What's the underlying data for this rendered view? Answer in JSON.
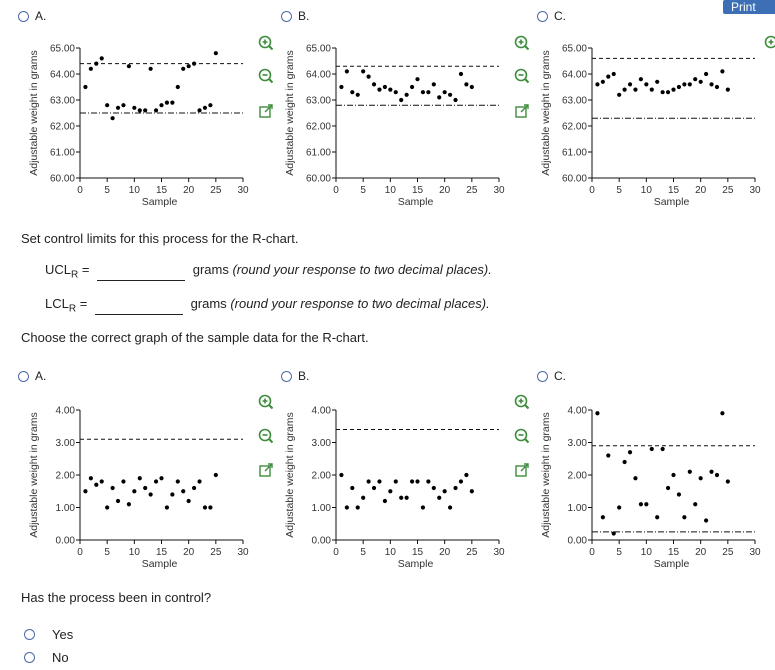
{
  "print_label": "Print",
  "xbar_options": [
    {
      "option_label": "A.",
      "chart_data": {
        "type": "scatter",
        "xlabel": "Sample",
        "ylabel": "Adjustable weight in grams",
        "xlim": [
          0,
          30
        ],
        "ylim": [
          60.0,
          65.0
        ],
        "xticks": [
          "0",
          "5",
          "10",
          "15",
          "20",
          "25",
          "30"
        ],
        "yticks": [
          "60.00",
          "61.00",
          "62.00",
          "63.00",
          "64.00",
          "65.00"
        ],
        "lines": [
          {
            "y": 64.4,
            "style": "dashed"
          },
          {
            "y": 62.5,
            "style": "dashdot"
          }
        ],
        "points": [
          [
            1,
            63.5
          ],
          [
            2,
            64.2
          ],
          [
            3,
            64.4
          ],
          [
            4,
            64.6
          ],
          [
            5,
            62.8
          ],
          [
            6,
            62.3
          ],
          [
            7,
            62.7
          ],
          [
            8,
            62.8
          ],
          [
            9,
            64.3
          ],
          [
            10,
            62.7
          ],
          [
            11,
            62.6
          ],
          [
            12,
            62.6
          ],
          [
            13,
            64.2
          ],
          [
            14,
            62.6
          ],
          [
            15,
            62.8
          ],
          [
            16,
            62.9
          ],
          [
            17,
            62.9
          ],
          [
            18,
            63.5
          ],
          [
            19,
            64.2
          ],
          [
            20,
            64.3
          ],
          [
            21,
            64.4
          ],
          [
            22,
            62.6
          ],
          [
            23,
            62.7
          ],
          [
            24,
            62.8
          ],
          [
            25,
            64.8
          ]
        ]
      }
    },
    {
      "option_label": "B.",
      "chart_data": {
        "type": "scatter",
        "xlabel": "Sample",
        "ylabel": "Adjustable weight in grams",
        "xlim": [
          0,
          30
        ],
        "ylim": [
          60.0,
          65.0
        ],
        "xticks": [
          "0",
          "5",
          "10",
          "15",
          "20",
          "25",
          "30"
        ],
        "yticks": [
          "60.00",
          "61.00",
          "62.00",
          "63.00",
          "64.00",
          "65.00"
        ],
        "lines": [
          {
            "y": 64.3,
            "style": "dashed"
          },
          {
            "y": 62.8,
            "style": "dashdot"
          }
        ],
        "points": [
          [
            1,
            63.5
          ],
          [
            2,
            64.1
          ],
          [
            3,
            63.3
          ],
          [
            4,
            63.2
          ],
          [
            5,
            64.1
          ],
          [
            6,
            63.9
          ],
          [
            7,
            63.6
          ],
          [
            8,
            63.4
          ],
          [
            9,
            63.5
          ],
          [
            10,
            63.4
          ],
          [
            11,
            63.3
          ],
          [
            12,
            63.0
          ],
          [
            13,
            63.2
          ],
          [
            14,
            63.5
          ],
          [
            15,
            63.8
          ],
          [
            16,
            63.3
          ],
          [
            17,
            63.3
          ],
          [
            18,
            63.6
          ],
          [
            19,
            63.1
          ],
          [
            20,
            63.3
          ],
          [
            21,
            63.2
          ],
          [
            22,
            63.0
          ],
          [
            23,
            64.0
          ],
          [
            24,
            63.6
          ],
          [
            25,
            63.5
          ]
        ]
      }
    },
    {
      "option_label": "C.",
      "chart_data": {
        "type": "scatter",
        "xlabel": "Sample",
        "ylabel": "Adjustable weight in grams",
        "xlim": [
          0,
          30
        ],
        "ylim": [
          60.0,
          65.0
        ],
        "xticks": [
          "0",
          "5",
          "10",
          "15",
          "20",
          "25",
          "30"
        ],
        "yticks": [
          "60.00",
          "61.00",
          "62.00",
          "63.00",
          "64.00",
          "65.00"
        ],
        "lines": [
          {
            "y": 64.6,
            "style": "dashed"
          },
          {
            "y": 62.3,
            "style": "dashdot"
          }
        ],
        "points": [
          [
            1,
            63.6
          ],
          [
            2,
            63.7
          ],
          [
            3,
            63.9
          ],
          [
            4,
            64.0
          ],
          [
            5,
            63.2
          ],
          [
            6,
            63.4
          ],
          [
            7,
            63.6
          ],
          [
            8,
            63.4
          ],
          [
            9,
            63.8
          ],
          [
            10,
            63.6
          ],
          [
            11,
            63.4
          ],
          [
            12,
            63.7
          ],
          [
            13,
            63.3
          ],
          [
            14,
            63.3
          ],
          [
            15,
            63.4
          ],
          [
            16,
            63.5
          ],
          [
            17,
            63.6
          ],
          [
            18,
            63.6
          ],
          [
            19,
            63.8
          ],
          [
            20,
            63.7
          ],
          [
            21,
            64.0
          ],
          [
            22,
            63.6
          ],
          [
            23,
            63.5
          ],
          [
            24,
            64.1
          ],
          [
            25,
            63.4
          ]
        ]
      }
    }
  ],
  "question": {
    "set_limits_text": "Set control limits for this process for the R-chart.",
    "ucl_label": "UCL",
    "lcl_label": "LCL",
    "subscript": "R",
    "equals": "=",
    "ucl_suffix_unit": "grams",
    "ucl_suffix_note": "(round your response to two decimal places).",
    "lcl_suffix_unit": "grams",
    "lcl_suffix_note": "(round your response to two decimal places).",
    "choose_text": "Choose the correct graph of the sample data for the R-chart.",
    "control_question": "Has the process been in control?",
    "answers": [
      "Yes",
      "No"
    ]
  },
  "r_options": [
    {
      "option_label": "A.",
      "chart_data": {
        "type": "scatter",
        "xlabel": "Sample",
        "ylabel": "Adjustable weight in grams",
        "xlim": [
          0,
          30
        ],
        "ylim": [
          0.0,
          4.0
        ],
        "xticks": [
          "0",
          "5",
          "10",
          "15",
          "20",
          "25",
          "30"
        ],
        "yticks": [
          "0.00",
          "1.00",
          "2.00",
          "3.00",
          "4.00"
        ],
        "lines": [
          {
            "y": 3.1,
            "style": "dashed"
          },
          {
            "y": 0.0,
            "style": "dashdot"
          }
        ],
        "points": [
          [
            1,
            1.5
          ],
          [
            2,
            1.9
          ],
          [
            3,
            1.7
          ],
          [
            4,
            1.8
          ],
          [
            5,
            1.0
          ],
          [
            6,
            1.6
          ],
          [
            7,
            1.2
          ],
          [
            8,
            1.8
          ],
          [
            9,
            1.1
          ],
          [
            10,
            1.5
          ],
          [
            11,
            1.9
          ],
          [
            12,
            1.6
          ],
          [
            13,
            1.4
          ],
          [
            14,
            1.8
          ],
          [
            15,
            1.9
          ],
          [
            16,
            1.0
          ],
          [
            17,
            1.4
          ],
          [
            18,
            1.8
          ],
          [
            19,
            1.5
          ],
          [
            20,
            1.2
          ],
          [
            21,
            1.6
          ],
          [
            22,
            1.8
          ],
          [
            23,
            1.0
          ],
          [
            24,
            1.0
          ],
          [
            25,
            2.0
          ]
        ]
      }
    },
    {
      "option_label": "B.",
      "chart_data": {
        "type": "scatter",
        "xlabel": "Sample",
        "ylabel": "Adjustable weight in grams",
        "xlim": [
          0,
          30
        ],
        "ylim": [
          0.0,
          4.0
        ],
        "xticks": [
          "0",
          "5",
          "10",
          "15",
          "20",
          "25",
          "30"
        ],
        "yticks": [
          "0.00",
          "1.00",
          "2.00",
          "3.00",
          "4.00"
        ],
        "lines": [
          {
            "y": 3.4,
            "style": "dashed"
          },
          {
            "y": 0.0,
            "style": "dashdot"
          }
        ],
        "points": [
          [
            1,
            2.0
          ],
          [
            2,
            1.0
          ],
          [
            3,
            1.6
          ],
          [
            4,
            1.0
          ],
          [
            5,
            1.3
          ],
          [
            6,
            1.8
          ],
          [
            7,
            1.6
          ],
          [
            8,
            1.8
          ],
          [
            9,
            1.2
          ],
          [
            10,
            1.5
          ],
          [
            11,
            1.8
          ],
          [
            12,
            1.3
          ],
          [
            13,
            1.3
          ],
          [
            14,
            1.8
          ],
          [
            15,
            1.8
          ],
          [
            16,
            1.0
          ],
          [
            17,
            1.8
          ],
          [
            18,
            1.6
          ],
          [
            19,
            1.3
          ],
          [
            20,
            1.5
          ],
          [
            21,
            1.0
          ],
          [
            22,
            1.6
          ],
          [
            23,
            1.8
          ],
          [
            24,
            2.0
          ],
          [
            25,
            1.5
          ]
        ]
      }
    },
    {
      "option_label": "C.",
      "chart_data": {
        "type": "scatter",
        "xlabel": "Sample",
        "ylabel": "Adjustable weight in grams",
        "xlim": [
          0,
          30
        ],
        "ylim": [
          0.0,
          4.0
        ],
        "xticks": [
          "0",
          "5",
          "10",
          "15",
          "20",
          "25",
          "30"
        ],
        "yticks": [
          "0.00",
          "1.00",
          "2.00",
          "3.00",
          "4.00"
        ],
        "lines": [
          {
            "y": 2.9,
            "style": "dashed"
          },
          {
            "y": 0.25,
            "style": "dashdot"
          }
        ],
        "points": [
          [
            1,
            3.9
          ],
          [
            2,
            0.7
          ],
          [
            3,
            2.6
          ],
          [
            4,
            0.2
          ],
          [
            5,
            1.0
          ],
          [
            6,
            2.4
          ],
          [
            7,
            2.7
          ],
          [
            8,
            1.9
          ],
          [
            9,
            1.1
          ],
          [
            10,
            1.1
          ],
          [
            11,
            2.8
          ],
          [
            12,
            0.7
          ],
          [
            13,
            2.8
          ],
          [
            14,
            1.6
          ],
          [
            15,
            2.0
          ],
          [
            16,
            1.4
          ],
          [
            17,
            0.7
          ],
          [
            18,
            2.1
          ],
          [
            19,
            1.1
          ],
          [
            20,
            1.9
          ],
          [
            21,
            0.6
          ],
          [
            22,
            2.1
          ],
          [
            23,
            2.0
          ],
          [
            24,
            3.9
          ],
          [
            25,
            1.8
          ]
        ]
      }
    }
  ]
}
